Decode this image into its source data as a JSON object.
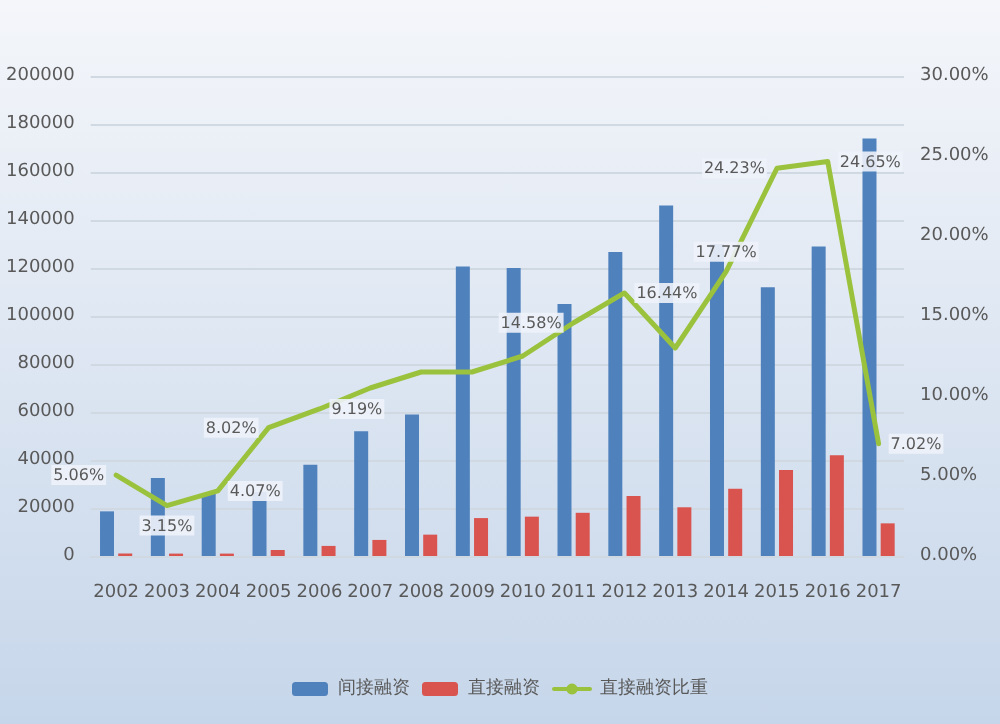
{
  "chart_data": {
    "type": "bar",
    "categories": [
      "2002",
      "2003",
      "2004",
      "2005",
      "2006",
      "2007",
      "2008",
      "2009",
      "2010",
      "2011",
      "2012",
      "2013",
      "2014",
      "2015",
      "2016",
      "2017"
    ],
    "series": [
      {
        "name": "间接融资",
        "color": "#4f81bd",
        "values": [
          18600,
          32500,
          26000,
          26700,
          38000,
          52000,
          59000,
          120600,
          120000,
          105000,
          126700,
          146000,
          130000,
          112000,
          129000,
          174000
        ]
      },
      {
        "name": "直接融资",
        "color": "#d9534f",
        "values": [
          1000,
          1000,
          1000,
          2500,
          4200,
          6700,
          8900,
          15800,
          16400,
          18000,
          25000,
          20300,
          28000,
          35800,
          42000,
          13600
        ]
      },
      {
        "name": "直接融资比重",
        "type": "line",
        "axis": "y2",
        "color": "#9bc23c",
        "values": [
          5.06,
          3.15,
          4.07,
          8.02,
          9.19,
          10.5,
          11.5,
          11.5,
          12.5,
          14.58,
          16.44,
          13,
          17.77,
          24.23,
          24.65,
          7.02
        ],
        "value_labels": [
          "5.06%",
          "3.15%",
          "4.07%",
          "8.02%",
          "9.19%",
          null,
          null,
          null,
          null,
          "14.58%",
          "16.44%",
          null,
          "17.77%",
          "24.23%",
          "24.65%",
          "7.02%"
        ]
      }
    ],
    "ylim": [
      0,
      200000
    ],
    "yticks": [
      0,
      20000,
      40000,
      60000,
      80000,
      100000,
      120000,
      140000,
      160000,
      180000,
      200000
    ],
    "y2lim": [
      0,
      30
    ],
    "y2ticks": [
      {
        "value": 0,
        "label": "0.00%"
      },
      {
        "value": 5,
        "label": "5.00%"
      },
      {
        "value": 10,
        "label": "10.00%"
      },
      {
        "value": 15,
        "label": "15.00%"
      },
      {
        "value": 20,
        "label": "20.00%"
      },
      {
        "value": 25,
        "label": "25.00%"
      },
      {
        "value": 30,
        "label": "30.00%"
      }
    ],
    "grid": "y",
    "legend": "bottom",
    "marker": "none",
    "line_style": "solid"
  }
}
